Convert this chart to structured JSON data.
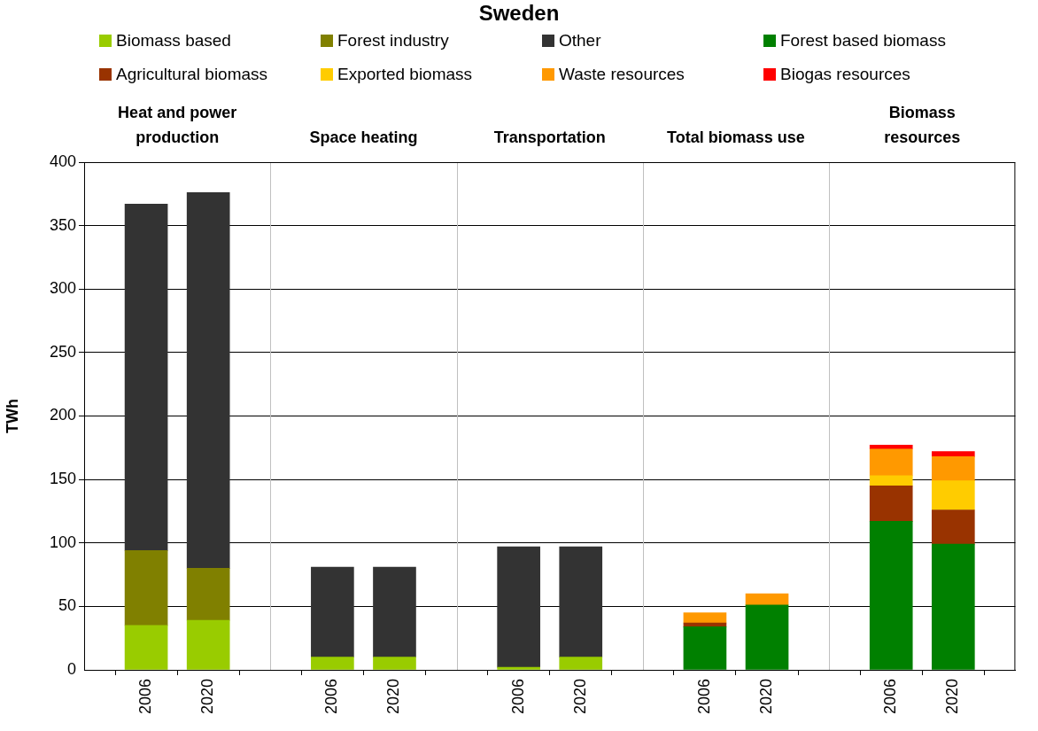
{
  "chart_data": {
    "type": "bar",
    "title": "Sweden",
    "ylabel": "TWh",
    "stacked": true,
    "grid": "y",
    "legend": "top",
    "categories": [
      "2006",
      "2020",
      "2006",
      "2020",
      "2006",
      "2020",
      "2006",
      "2020",
      "2006",
      "2020"
    ],
    "annotations": [
      "Heat and power production",
      "Space heating",
      "Transportation",
      "Total biomass use",
      "Biomass resources"
    ],
    "ylim": [
      0,
      400
    ],
    "yticks": [
      0,
      50,
      100,
      150,
      200,
      250,
      300,
      350,
      400
    ],
    "series": [
      {
        "name": "Biomass based",
        "color": "#99cc00",
        "values": [
          35,
          39,
          10,
          10,
          2,
          10,
          null,
          null,
          null,
          null
        ]
      },
      {
        "name": "Forest industry",
        "color": "#808000",
        "values": [
          59,
          41,
          null,
          null,
          null,
          null,
          null,
          null,
          null,
          null
        ]
      },
      {
        "name": "Other",
        "color": "#333333",
        "values": [
          273,
          296,
          71,
          71,
          95,
          87,
          null,
          null,
          null,
          null
        ]
      },
      {
        "name": "Forest based biomass",
        "color": "#008000",
        "values": [
          null,
          null,
          null,
          null,
          null,
          null,
          34,
          51,
          117,
          99
        ]
      },
      {
        "name": "Agricultural biomass",
        "color": "#993300",
        "values": [
          null,
          null,
          null,
          null,
          null,
          null,
          3,
          null,
          28,
          27
        ]
      },
      {
        "name": "Exported biomass",
        "color": "#ffcc00",
        "values": [
          null,
          null,
          null,
          null,
          null,
          null,
          null,
          null,
          8,
          23
        ]
      },
      {
        "name": "Waste resources",
        "color": "#ff9900",
        "values": [
          null,
          null,
          null,
          null,
          null,
          null,
          8,
          9,
          21,
          19
        ]
      },
      {
        "name": "Biogas resources",
        "color": "#ff0000",
        "values": [
          null,
          null,
          null,
          null,
          null,
          null,
          null,
          null,
          3,
          4
        ]
      }
    ]
  }
}
